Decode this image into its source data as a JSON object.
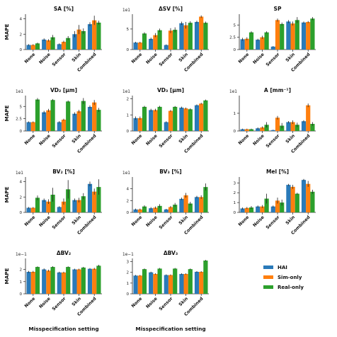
{
  "chart_data": {
    "type": "bar",
    "categories": [
      "None",
      "Noise",
      "Sensor",
      "Skin",
      "Combined"
    ],
    "ylabel": "MAPE",
    "xlabel": "Misspecification setting",
    "legend": {
      "position": "bottom-right",
      "entries": [
        "HAI",
        "Sim-only",
        "Real-only"
      ]
    },
    "series_colors": {
      "HAI": "#2a7ab9",
      "Sim-only": "#ff7f0e",
      "Real-only": "#2ca02c"
    },
    "grid": false,
    "panels": [
      {
        "title": "SA [%]",
        "multiplier": "",
        "ylim": [
          0,
          4.6
        ],
        "yticks": [
          0,
          2,
          4
        ],
        "series": [
          {
            "name": "HAI",
            "values": [
              0.6,
              1.3,
              0.7,
              2.0,
              3.3
            ],
            "errors": [
              0.1,
              0.15,
              0.1,
              0.4,
              0.25
            ]
          },
          {
            "name": "Sim-only",
            "values": [
              0.6,
              1.2,
              1.0,
              2.6,
              3.8
            ],
            "errors": [
              0.1,
              0.15,
              0.15,
              0.6,
              0.6
            ]
          },
          {
            "name": "Real-only",
            "values": [
              0.8,
              1.6,
              1.5,
              2.4,
              3.5
            ],
            "errors": [
              0.1,
              0.3,
              0.25,
              0.35,
              0.25
            ]
          }
        ]
      },
      {
        "title": "ΔSV [%]",
        "multiplier": "1e1",
        "ylim": [
          0,
          8.6
        ],
        "yticks": [
          0,
          5
        ],
        "series": [
          {
            "name": "HAI",
            "values": [
              1.7,
              2.6,
              1.1,
              6.4,
              6.7
            ],
            "errors": [
              0.2,
              0.3,
              0.15,
              0.4,
              0.3
            ]
          },
          {
            "name": "Sim-only",
            "values": [
              1.7,
              3.5,
              4.6,
              5.9,
              8.0
            ],
            "errors": [
              0.2,
              0.5,
              0.6,
              0.8,
              0.3
            ]
          },
          {
            "name": "Real-only",
            "values": [
              3.9,
              4.7,
              4.8,
              6.5,
              6.5
            ],
            "errors": [
              0.3,
              0.4,
              0.6,
              0.4,
              0.3
            ]
          }
        ]
      },
      {
        "title": "SP",
        "multiplier": "",
        "ylim": [
          0,
          7.2
        ],
        "yticks": [
          0,
          2.5,
          5.0
        ],
        "series": [
          {
            "name": "HAI",
            "values": [
              2.1,
              2.0,
              0.6,
              5.7,
              5.5
            ],
            "errors": [
              0.3,
              0.2,
              0.1,
              0.3,
              0.2
            ]
          },
          {
            "name": "Sim-only",
            "values": [
              2.2,
              2.5,
              6.0,
              5.3,
              5.6
            ],
            "errors": [
              0.3,
              0.3,
              0.3,
              0.4,
              0.2
            ]
          },
          {
            "name": "Real-only",
            "values": [
              3.5,
              3.5,
              5.2,
              6.0,
              6.3
            ],
            "errors": [
              0.2,
              0.2,
              0.3,
              0.6,
              0.3
            ]
          }
        ]
      },
      {
        "title": "VD₂ [μm]",
        "multiplier": "1e1",
        "ylim": [
          0,
          7.2
        ],
        "yticks": [
          0,
          2.5,
          5.0
        ],
        "series": [
          {
            "name": "HAI",
            "values": [
              1.8,
              3.8,
              1.8,
              3.5,
              4.9
            ],
            "errors": [
              0.15,
              0.3,
              0.2,
              0.3,
              0.3
            ]
          },
          {
            "name": "Sim-only",
            "values": [
              1.8,
              4.2,
              2.3,
              4.0,
              5.8
            ],
            "errors": [
              0.15,
              0.3,
              0.2,
              0.3,
              0.5
            ]
          },
          {
            "name": "Real-only",
            "values": [
              6.4,
              6.3,
              6.0,
              6.1,
              4.3
            ],
            "errors": [
              0.3,
              0.2,
              0.2,
              0.6,
              0.4
            ]
          }
        ]
      },
      {
        "title": "VD₃ [μm]",
        "multiplier": "1e1",
        "ylim": [
          0,
          2.2
        ],
        "yticks": [
          0,
          1,
          2
        ],
        "series": [
          {
            "name": "HAI",
            "values": [
              0.8,
              1.3,
              0.55,
              1.45,
              1.6
            ],
            "errors": [
              0.1,
              0.08,
              0.05,
              0.06,
              0.05
            ]
          },
          {
            "name": "Sim-only",
            "values": [
              0.8,
              1.3,
              1.25,
              1.4,
              1.7
            ],
            "errors": [
              0.1,
              0.08,
              0.06,
              0.06,
              0.05
            ]
          },
          {
            "name": "Real-only",
            "values": [
              1.5,
              1.5,
              1.5,
              1.35,
              1.9
            ],
            "errors": [
              0.06,
              0.06,
              0.05,
              0.06,
              0.05
            ]
          }
        ]
      },
      {
        "title": "A [mm⁻¹]",
        "multiplier": "1e1",
        "ylim": [
          0,
          2.0
        ],
        "yticks": [
          0,
          1
        ],
        "series": [
          {
            "name": "HAI",
            "values": [
              0.1,
              0.15,
              0.05,
              0.5,
              0.55
            ],
            "errors": [
              0.03,
              0.05,
              0.02,
              0.06,
              0.06
            ]
          },
          {
            "name": "Sim-only",
            "values": [
              0.1,
              0.2,
              0.75,
              0.5,
              1.45
            ],
            "errors": [
              0.03,
              0.06,
              0.1,
              0.1,
              0.1
            ]
          },
          {
            "name": "Real-only",
            "values": [
              0.1,
              0.35,
              0.3,
              0.35,
              0.4
            ],
            "errors": [
              0.03,
              0.15,
              0.15,
              0.12,
              0.1
            ]
          }
        ]
      },
      {
        "title": "BV₂ [%]",
        "multiplier": "1e1",
        "ylim": [
          0,
          4.6
        ],
        "yticks": [
          0,
          2,
          4
        ],
        "series": [
          {
            "name": "HAI",
            "values": [
              0.6,
              1.6,
              0.7,
              1.6,
              3.7
            ],
            "errors": [
              0.1,
              0.2,
              0.1,
              0.2,
              0.3
            ]
          },
          {
            "name": "Sim-only",
            "values": [
              0.6,
              1.4,
              1.4,
              1.6,
              2.7
            ],
            "errors": [
              0.1,
              0.3,
              0.4,
              0.3,
              0.4
            ]
          },
          {
            "name": "Real-only",
            "values": [
              1.9,
              2.3,
              3.0,
              2.1,
              3.3
            ],
            "errors": [
              0.3,
              0.9,
              1.2,
              0.4,
              1.0
            ]
          }
        ]
      },
      {
        "title": "BV₃ [%]",
        "multiplier": "1e1",
        "ylim": [
          0,
          6.0
        ],
        "yticks": [
          0,
          2,
          4
        ],
        "series": [
          {
            "name": "HAI",
            "values": [
              0.5,
              0.7,
              0.5,
              2.3,
              2.6
            ],
            "errors": [
              0.15,
              0.2,
              0.1,
              0.2,
              0.2
            ]
          },
          {
            "name": "Sim-only",
            "values": [
              0.5,
              0.8,
              0.9,
              2.9,
              2.6
            ],
            "errors": [
              0.15,
              0.2,
              0.2,
              0.4,
              0.3
            ]
          },
          {
            "name": "Real-only",
            "values": [
              1.0,
              1.1,
              1.3,
              1.5,
              4.3
            ],
            "errors": [
              0.2,
              0.3,
              0.3,
              0.3,
              0.6
            ]
          }
        ]
      },
      {
        "title": "Mel [%]",
        "multiplier": "",
        "ylim": [
          0,
          3.6
        ],
        "yticks": [
          0,
          1,
          2,
          3
        ],
        "series": [
          {
            "name": "HAI",
            "values": [
              0.4,
              0.6,
              0.6,
              2.8,
              3.3
            ],
            "errors": [
              0.1,
              0.1,
              0.1,
              0.1,
              0.1
            ]
          },
          {
            "name": "Sim-only",
            "values": [
              0.45,
              0.6,
              1.2,
              2.6,
              2.9
            ],
            "errors": [
              0.1,
              0.15,
              0.3,
              0.2,
              0.3
            ]
          },
          {
            "name": "Real-only",
            "values": [
              0.5,
              1.4,
              1.0,
              1.9,
              2.1
            ],
            "errors": [
              0.15,
              0.5,
              0.3,
              0.1,
              0.2
            ]
          }
        ]
      },
      {
        "title": "ΔBV₂",
        "multiplier": "1e−1",
        "ylim": [
          0,
          2.9
        ],
        "yticks": [
          0,
          1,
          2
        ],
        "series": [
          {
            "name": "HAI",
            "values": [
              1.8,
              2.0,
              1.75,
              2.0,
              2.05
            ],
            "errors": [
              0.08,
              0.08,
              0.06,
              0.06,
              0.06
            ]
          },
          {
            "name": "Sim-only",
            "values": [
              1.8,
              1.9,
              1.75,
              2.0,
              2.05
            ],
            "errors": [
              0.08,
              0.08,
              0.06,
              0.06,
              0.08
            ]
          },
          {
            "name": "Real-only",
            "values": [
              2.2,
              2.2,
              2.2,
              2.15,
              2.3
            ],
            "errors": [
              0.05,
              0.06,
              0.05,
              0.06,
              0.08
            ]
          }
        ]
      },
      {
        "title": "ΔBV₃",
        "multiplier": "1e−1",
        "ylim": [
          0,
          3.3
        ],
        "yticks": [
          0,
          1,
          2,
          3
        ],
        "series": [
          {
            "name": "HAI",
            "values": [
              1.7,
              2.0,
              1.75,
              1.85,
              2.05
            ],
            "errors": [
              0.06,
              0.06,
              0.06,
              0.06,
              0.06
            ]
          },
          {
            "name": "Sim-only",
            "values": [
              1.7,
              1.85,
              1.75,
              1.85,
              2.05
            ],
            "errors": [
              0.06,
              0.06,
              0.06,
              0.06,
              0.06
            ]
          },
          {
            "name": "Real-only",
            "values": [
              2.3,
              2.35,
              2.35,
              2.3,
              3.1
            ],
            "errors": [
              0.06,
              0.06,
              0.06,
              0.06,
              0.06
            ]
          }
        ]
      }
    ]
  }
}
